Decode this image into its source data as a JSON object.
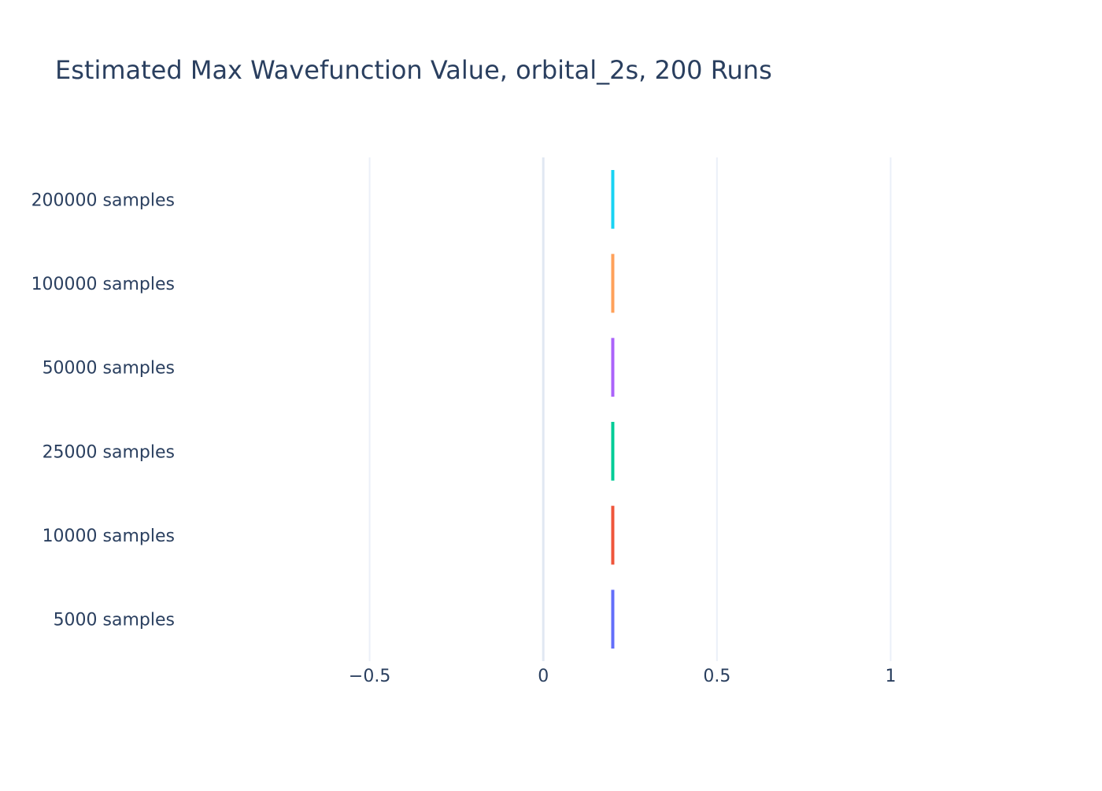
{
  "chart_data": {
    "type": "box",
    "title": "Estimated Max Wavefunction Value, orbital_2s, 200 Runs",
    "orientation": "horizontal",
    "xlabel": "",
    "ylabel": "",
    "xlim": [
      -1.0,
      1.45
    ],
    "x_ticks": [
      -0.5,
      0,
      0.5,
      1
    ],
    "x_tick_labels": [
      "−0.5",
      "0",
      "0.5",
      "1"
    ],
    "grid": true,
    "legend": "none",
    "series": [
      {
        "category": "5000 samples",
        "value": 0.2,
        "color": "#636efa"
      },
      {
        "category": "10000 samples",
        "value": 0.2,
        "color": "#ef553b"
      },
      {
        "category": "25000 samples",
        "value": 0.2,
        "color": "#00cc96"
      },
      {
        "category": "50000 samples",
        "value": 0.2,
        "color": "#ab63fa"
      },
      {
        "category": "100000 samples",
        "value": 0.2,
        "color": "#ffa15a"
      },
      {
        "category": "200000 samples",
        "value": 0.2,
        "color": "#19d3f3"
      }
    ]
  }
}
